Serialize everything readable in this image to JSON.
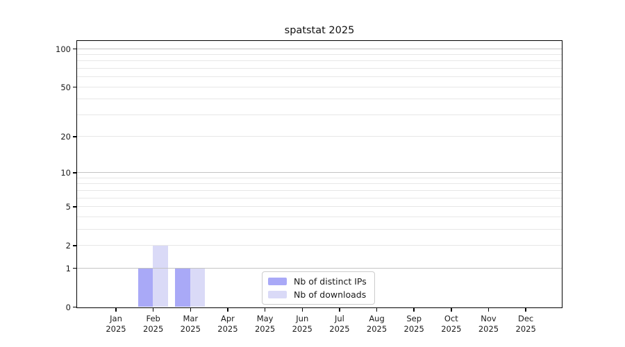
{
  "page": {
    "background": "#ffffff"
  },
  "chart_data": {
    "type": "bar",
    "title": "spatstat 2025",
    "categories": [
      "Jan 2025",
      "Feb 2025",
      "Mar 2025",
      "Apr 2025",
      "May 2025",
      "Jun 2025",
      "Jul 2025",
      "Aug 2025",
      "Sep 2025",
      "Oct 2025",
      "Nov 2025",
      "Dec 2025"
    ],
    "series": [
      {
        "name": "Nb of distinct IPs",
        "color": "#a9a9f7",
        "values": [
          0,
          1,
          1,
          0,
          0,
          0,
          0,
          0,
          0,
          0,
          0,
          0
        ]
      },
      {
        "name": "Nb of downloads",
        "color": "#dadaf7",
        "values": [
          0,
          2,
          1,
          0,
          0,
          0,
          0,
          0,
          0,
          0,
          0,
          0
        ]
      }
    ],
    "xlabel": "",
    "ylabel": "",
    "y_axis": {
      "scale": "log10(1+y)",
      "tick_values": [
        0,
        1,
        2,
        5,
        10,
        20,
        50,
        100
      ],
      "major_gridlines": [
        1,
        10,
        100
      ],
      "minor_gridlines": [
        2,
        3,
        4,
        5,
        6,
        7,
        8,
        9,
        20,
        30,
        40,
        50,
        60,
        70,
        80,
        90
      ],
      "ylim": [
        0,
        115
      ]
    },
    "legend": {
      "position": "lower center",
      "entries": [
        "Nb of distinct IPs",
        "Nb of downloads"
      ]
    },
    "grid": true,
    "colors": {
      "axis": "#000000",
      "text": "#1a1a1a",
      "major_grid": "#c3c3c3",
      "minor_grid": "#e7e7e7",
      "legend_border": "#cccccc",
      "background": "#ffffff"
    }
  }
}
